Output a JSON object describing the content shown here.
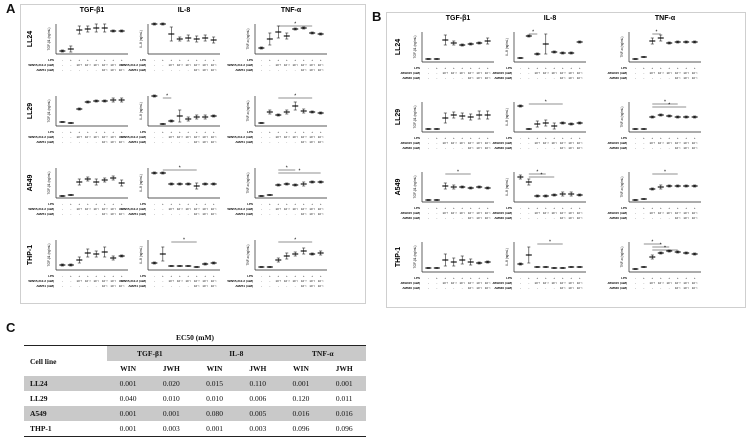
{
  "panels": {
    "a_letter": "A",
    "b_letter": "B",
    "c_letter": "C"
  },
  "columns": [
    "TGF-β1",
    "IL-8",
    "TNF-α"
  ],
  "rows": [
    "LL24",
    "LL29",
    "A549",
    "THP-1"
  ],
  "y_axis_labels": [
    "TGF-β1 (ng/mL)",
    "IL-8 (ng/mL)",
    "TNF-α (ng/mL)"
  ],
  "conditions_a": {
    "lps_label": "LPS",
    "lps_values": [
      "-",
      "+",
      "+",
      "+",
      "+",
      "+",
      "+",
      "+"
    ],
    "agonist_label": "WIN55,212-2 (mM)",
    "agonist_values": [
      "-",
      "-",
      "10⁻³",
      "10⁻²",
      "10⁻¹",
      "10⁻³",
      "10⁻²",
      "10⁻¹"
    ],
    "antagonist_label": "AM251 (mM)",
    "antagonist_values": [
      "-",
      "-",
      "-",
      "-",
      "-",
      "10⁻¹",
      "10⁻¹",
      "10⁻¹"
    ]
  },
  "conditions_b": {
    "lps_label": "LPS",
    "lps_values": [
      "-",
      "+",
      "+",
      "+",
      "+",
      "+",
      "+",
      "+"
    ],
    "agonist_label": "JWH015 (mM)",
    "agonist_values": [
      "-",
      "-",
      "10⁻³",
      "10⁻²",
      "10⁻¹",
      "10⁻³",
      "10⁻²",
      "10⁻¹"
    ],
    "antagonist_label": "AM630 (mM)",
    "antagonist_values": [
      "-",
      "-",
      "-",
      "-",
      "-",
      "10⁻¹",
      "10⁻¹",
      "10⁻¹"
    ]
  },
  "significance_marker": "*",
  "chart_data": [
    {
      "panel": "A",
      "type": "scatter",
      "agonist": "WIN55,212-2",
      "antagonist": "AM251",
      "x": [
        "1",
        "2",
        "3",
        "4",
        "5",
        "6",
        "7",
        "8"
      ],
      "subplots": [
        {
          "row": "LL24",
          "col": "TGF-β1",
          "values": [
            0.3,
            0.5,
            2.4,
            2.5,
            2.6,
            2.6,
            2.3,
            2.3
          ],
          "errors": [
            0.1,
            0.3,
            0.4,
            0.3,
            0.4,
            0.4,
            0.1,
            0.1
          ],
          "sig": []
        },
        {
          "row": "LL24",
          "col": "IL-8",
          "values": [
            3.0,
            3.0,
            2.0,
            1.5,
            1.6,
            1.5,
            1.6,
            1.4
          ],
          "errors": [
            0.1,
            0.1,
            0.7,
            0.2,
            0.3,
            0.3,
            0.3,
            0.3
          ],
          "sig": []
        },
        {
          "row": "LL24",
          "col": "TNF-α",
          "values": [
            0.6,
            1.5,
            2.2,
            1.8,
            2.5,
            2.6,
            2.1,
            2.0
          ],
          "errors": [
            0.1,
            0.6,
            0.6,
            0.3,
            0.1,
            0.1,
            0.1,
            0.1
          ],
          "sig": [
            [
              2,
              6
            ]
          ]
        },
        {
          "row": "LL29",
          "col": "TGF-β1",
          "values": [
            0.4,
            0.3,
            1.7,
            2.4,
            2.5,
            2.5,
            2.6,
            2.6
          ],
          "errors": [
            0.05,
            0.05,
            0.1,
            0.1,
            0.1,
            0.1,
            0.2,
            0.2
          ],
          "sig": []
        },
        {
          "row": "LL29",
          "col": "IL-8",
          "values": [
            3.0,
            0.2,
            0.5,
            1.0,
            0.7,
            0.9,
            0.9,
            1.0
          ],
          "errors": [
            0.1,
            0.05,
            0.1,
            0.6,
            0.2,
            0.2,
            0.2,
            0.1
          ],
          "sig": [
            [
              1,
              2
            ]
          ]
        },
        {
          "row": "LL29",
          "col": "TNF-α",
          "values": [
            0.3,
            1.4,
            1.1,
            1.4,
            2.0,
            1.5,
            1.4,
            1.3
          ],
          "errors": [
            0.05,
            0.2,
            0.1,
            0.2,
            0.4,
            0.2,
            0.1,
            0.1
          ],
          "sig": [
            [
              2,
              6
            ]
          ]
        },
        {
          "row": "A549",
          "col": "TGF-β1",
          "values": [
            0.2,
            0.3,
            1.6,
            1.9,
            1.6,
            1.8,
            2.0,
            1.5
          ],
          "errors": [
            0.05,
            0.05,
            0.3,
            0.2,
            0.3,
            0.2,
            0.2,
            0.3
          ],
          "sig": []
        },
        {
          "row": "A549",
          "col": "IL-8",
          "values": [
            2.5,
            2.5,
            1.4,
            1.4,
            1.4,
            1.2,
            1.4,
            1.4
          ],
          "errors": [
            0.1,
            0.1,
            0.1,
            0.1,
            0.1,
            0.3,
            0.1,
            0.1
          ],
          "sig": [
            [
              1,
              5
            ]
          ]
        },
        {
          "row": "A549",
          "col": "TNF-α",
          "values": [
            0.2,
            0.3,
            1.3,
            1.4,
            1.3,
            1.4,
            1.6,
            1.6
          ],
          "errors": [
            0.05,
            0.05,
            0.1,
            0.1,
            0.1,
            0.2,
            0.1,
            0.1
          ],
          "sig": [
            [
              2,
              4
            ],
            [
              2,
              7
            ]
          ]
        },
        {
          "row": "THP-1",
          "col": "TGF-β1",
          "values": [
            0.5,
            0.5,
            1.0,
            1.7,
            1.6,
            1.8,
            1.2,
            1.4
          ],
          "errors": [
            0.1,
            0.1,
            0.3,
            0.4,
            0.3,
            0.5,
            0.2,
            0.1
          ],
          "sig": []
        },
        {
          "row": "THP-1",
          "col": "IL-8",
          "values": [
            0.7,
            1.6,
            0.4,
            0.4,
            0.4,
            0.3,
            0.6,
            0.7
          ],
          "errors": [
            0.1,
            0.7,
            0.05,
            0.05,
            0.05,
            0.05,
            0.1,
            0.1
          ],
          "sig": [
            [
              2,
              5
            ]
          ]
        },
        {
          "row": "THP-1",
          "col": "TNF-α",
          "values": [
            0.3,
            0.3,
            1.0,
            1.4,
            1.6,
            1.9,
            1.6,
            1.7
          ],
          "errors": [
            0.05,
            0.05,
            0.2,
            0.3,
            0.2,
            0.3,
            0.1,
            0.2
          ],
          "sig": [
            [
              2,
              6
            ]
          ]
        }
      ]
    },
    {
      "panel": "B",
      "type": "scatter",
      "agonist": "JWH015",
      "antagonist": "AM630",
      "x": [
        "1",
        "2",
        "3",
        "4",
        "5",
        "6",
        "7",
        "8"
      ],
      "subplots": [
        {
          "row": "LL24",
          "col": "TGF-β1",
          "values": [
            0.3,
            0.3,
            2.2,
            1.9,
            1.7,
            1.8,
            1.9,
            2.1
          ],
          "errors": [
            0.05,
            0.05,
            0.5,
            0.2,
            0.1,
            0.1,
            0.1,
            0.3
          ],
          "sig": []
        },
        {
          "row": "LL24",
          "col": "IL-8",
          "values": [
            0.4,
            2.6,
            0.8,
            1.8,
            1.0,
            0.9,
            0.9,
            2.0
          ],
          "errors": [
            0.05,
            0.1,
            0.1,
            1.0,
            0.1,
            0.1,
            0.1,
            0.1
          ],
          "sig": [
            [
              1,
              2
            ]
          ]
        },
        {
          "row": "LL24",
          "col": "TNF-α",
          "values": [
            0.3,
            0.5,
            2.1,
            2.4,
            1.9,
            2.0,
            2.0,
            2.0
          ],
          "errors": [
            0.05,
            0.05,
            0.3,
            0.3,
            0.1,
            0.1,
            0.1,
            0.1
          ],
          "sig": [
            [
              2,
              3
            ]
          ]
        },
        {
          "row": "LL29",
          "col": "TGF-β1",
          "values": [
            0.3,
            0.3,
            1.4,
            1.7,
            1.6,
            1.5,
            1.7,
            1.7
          ],
          "errors": [
            0.05,
            0.05,
            0.5,
            0.3,
            0.3,
            0.3,
            0.4,
            0.4
          ],
          "sig": []
        },
        {
          "row": "LL29",
          "col": "IL-8",
          "values": [
            2.6,
            0.3,
            0.8,
            0.9,
            0.6,
            0.9,
            0.8,
            0.9
          ],
          "errors": [
            0.1,
            0.05,
            0.3,
            0.3,
            0.3,
            0.1,
            0.1,
            0.1
          ],
          "sig": [
            [
              1,
              5
            ]
          ]
        },
        {
          "row": "LL29",
          "col": "TNF-α",
          "values": [
            0.3,
            0.3,
            1.5,
            1.7,
            1.6,
            1.5,
            1.5,
            1.5
          ],
          "errors": [
            0.05,
            0.05,
            0.1,
            0.1,
            0.1,
            0.1,
            0.1,
            0.1
          ],
          "sig": [
            [
              2,
              5
            ],
            [
              2,
              6
            ]
          ]
        },
        {
          "row": "A549",
          "col": "TGF-β1",
          "values": [
            0.2,
            0.2,
            1.6,
            1.5,
            1.5,
            1.4,
            1.5,
            1.4
          ],
          "errors": [
            0.05,
            0.05,
            0.3,
            0.2,
            0.1,
            0.1,
            0.1,
            0.1
          ],
          "sig": [
            [
              2,
              5
            ]
          ]
        },
        {
          "row": "A549",
          "col": "IL-8",
          "values": [
            2.5,
            2.0,
            0.6,
            0.6,
            0.7,
            0.8,
            0.8,
            0.7
          ],
          "errors": [
            0.2,
            0.3,
            0.1,
            0.1,
            0.1,
            0.2,
            0.2,
            0.1
          ],
          "sig": [
            [
              1,
              3
            ],
            [
              1,
              4
            ]
          ]
        },
        {
          "row": "A549",
          "col": "TNF-α",
          "values": [
            0.2,
            0.3,
            1.3,
            1.5,
            1.6,
            1.6,
            1.6,
            1.6
          ],
          "errors": [
            0.05,
            0.05,
            0.1,
            0.2,
            0.1,
            0.1,
            0.1,
            0.1
          ],
          "sig": [
            [
              2,
              5
            ]
          ]
        },
        {
          "row": "THP-1",
          "col": "TGF-β1",
          "values": [
            0.4,
            0.4,
            1.2,
            1.0,
            1.2,
            1.0,
            0.9,
            1.0
          ],
          "errors": [
            0.05,
            0.05,
            0.6,
            0.4,
            0.4,
            0.3,
            0.1,
            0.1
          ],
          "sig": []
        },
        {
          "row": "THP-1",
          "col": "IL-8",
          "values": [
            0.8,
            1.7,
            0.5,
            0.5,
            0.4,
            0.4,
            0.5,
            0.5
          ],
          "errors": [
            0.1,
            0.8,
            0.05,
            0.05,
            0.05,
            0.05,
            0.05,
            0.05
          ],
          "sig": [
            [
              2,
              5
            ]
          ]
        },
        {
          "row": "THP-1",
          "col": "TNF-α",
          "values": [
            0.3,
            0.5,
            1.5,
            1.9,
            2.1,
            2.0,
            1.9,
            1.8
          ],
          "errors": [
            0.05,
            0.05,
            0.2,
            0.1,
            0.1,
            0.1,
            0.1,
            0.1
          ],
          "sig": [
            [
              1,
              3
            ],
            [
              2,
              4
            ],
            [
              2,
              5
            ]
          ]
        }
      ]
    }
  ],
  "table": {
    "title": "EC50 (mM)",
    "row_header": "Cell line",
    "groups": [
      "TGF-β1",
      "IL-8",
      "TNF-α"
    ],
    "subheaders": [
      "WIN",
      "JWH",
      "WIN",
      "JWH",
      "WIN",
      "JWH"
    ],
    "rows": [
      {
        "cell": "LL24",
        "values": [
          "0.001",
          "0.020",
          "0.015",
          "0.110",
          "0.001",
          "0.001"
        ]
      },
      {
        "cell": "LL29",
        "values": [
          "0.040",
          "0.010",
          "0.010",
          "0.006",
          "0.120",
          "0.011"
        ]
      },
      {
        "cell": "A549",
        "values": [
          "0.001",
          "0.001",
          "0.080",
          "0.005",
          "0.016",
          "0.016"
        ]
      },
      {
        "cell": "THP-1",
        "values": [
          "0.001",
          "0.003",
          "0.001",
          "0.003",
          "0.096",
          "0.096"
        ]
      }
    ]
  }
}
